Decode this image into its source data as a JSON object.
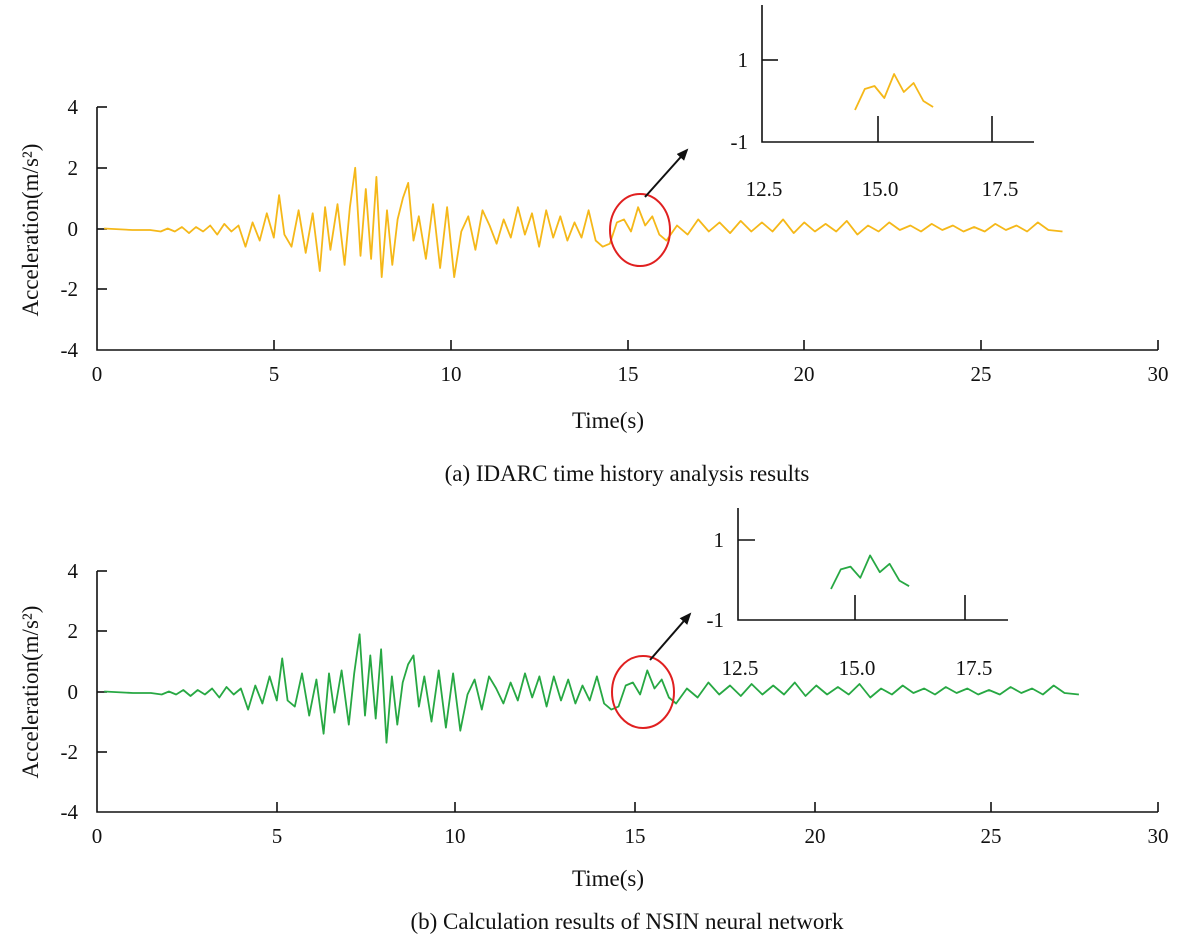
{
  "chart_data": [
    {
      "type": "line",
      "caption": "(a) IDARC time history analysis results",
      "xlabel": "Time(s)",
      "ylabel": "Acceleration(m/s²)",
      "xlim": [
        0,
        30
      ],
      "ylim": [
        -4,
        4
      ],
      "xticks": [
        "0",
        "5",
        "10",
        "15",
        "20",
        "25",
        "30"
      ],
      "yticks": [
        "4",
        "2",
        "0",
        "-2",
        "-4"
      ],
      "color": "#f5b819",
      "series": [
        {
          "x": [
            0.2,
            1.0,
            1.5,
            1.8,
            2.0,
            2.2,
            2.4,
            2.6,
            2.8,
            3.0,
            3.2,
            3.4,
            3.6,
            3.8,
            4.0,
            4.2,
            4.4,
            4.6,
            4.8,
            5.0,
            5.15,
            5.3,
            5.5,
            5.7,
            5.9,
            6.1,
            6.3,
            6.45,
            6.6,
            6.8,
            7.0,
            7.15,
            7.3,
            7.45,
            7.6,
            7.75,
            7.9,
            8.05,
            8.2,
            8.35,
            8.5,
            8.65,
            8.8,
            8.95,
            9.1,
            9.3,
            9.5,
            9.7,
            9.9,
            10.1,
            10.3,
            10.5,
            10.7,
            10.9,
            11.1,
            11.3,
            11.5,
            11.7,
            11.9,
            12.1,
            12.3,
            12.5,
            12.7,
            12.9,
            13.1,
            13.3,
            13.5,
            13.7,
            13.9,
            14.1,
            14.3,
            14.5,
            14.7,
            14.9,
            15.1,
            15.3,
            15.5,
            15.7,
            15.9,
            16.1,
            16.4,
            16.7,
            17.0,
            17.3,
            17.6,
            17.9,
            18.2,
            18.5,
            18.8,
            19.1,
            19.4,
            19.7,
            20.0,
            20.3,
            20.6,
            20.9,
            21.2,
            21.5,
            21.8,
            22.1,
            22.4,
            22.7,
            23.0,
            23.3,
            23.6,
            23.9,
            24.2,
            24.5,
            24.8,
            25.1,
            25.4,
            25.7,
            26.0,
            26.3,
            26.6,
            26.9,
            27.3
          ],
          "y": [
            0.0,
            -0.05,
            -0.05,
            -0.1,
            0.0,
            -0.1,
            0.05,
            -0.15,
            0.05,
            -0.1,
            0.1,
            -0.2,
            0.15,
            -0.1,
            0.1,
            -0.6,
            0.2,
            -0.4,
            0.5,
            -0.3,
            1.1,
            -0.2,
            -0.6,
            0.6,
            -0.8,
            0.5,
            -1.4,
            0.7,
            -0.7,
            0.8,
            -1.2,
            0.7,
            2.0,
            -0.9,
            1.3,
            -1.0,
            1.7,
            -1.6,
            0.6,
            -1.2,
            0.3,
            1.0,
            1.5,
            -0.4,
            0.4,
            -1.0,
            0.8,
            -1.3,
            0.7,
            -1.6,
            -0.1,
            0.4,
            -0.7,
            0.6,
            0.1,
            -0.5,
            0.3,
            -0.3,
            0.7,
            -0.2,
            0.5,
            -0.6,
            0.6,
            -0.3,
            0.4,
            -0.4,
            0.2,
            -0.3,
            0.6,
            -0.4,
            -0.6,
            -0.5,
            0.2,
            0.3,
            -0.1,
            0.7,
            0.1,
            0.4,
            -0.2,
            -0.4,
            0.1,
            -0.2,
            0.3,
            -0.1,
            0.2,
            -0.15,
            0.25,
            -0.1,
            0.2,
            -0.1,
            0.3,
            -0.15,
            0.2,
            -0.1,
            0.15,
            -0.1,
            0.25,
            -0.2,
            0.1,
            -0.1,
            0.2,
            -0.05,
            0.1,
            -0.1,
            0.15,
            -0.05,
            0.1,
            -0.1,
            0.05,
            -0.1,
            0.15,
            -0.05,
            0.1,
            -0.1,
            0.2,
            -0.05,
            -0.1
          ]
        }
      ],
      "inset": {
        "xticks": [
          "12.5",
          "15.0",
          "17.5"
        ],
        "yticks": [
          "1",
          "-1"
        ],
        "xlim": [
          12.5,
          17.5
        ],
        "ylim": [
          -1,
          1
        ]
      }
    },
    {
      "type": "line",
      "caption": "(b) Calculation results of NSIN neural network",
      "xlabel": "Time(s)",
      "ylabel": "Acceleration(m/s²)",
      "xlim": [
        0,
        30
      ],
      "ylim": [
        -4,
        4
      ],
      "xticks": [
        "0",
        "5",
        "10",
        "15",
        "20",
        "25",
        "30"
      ],
      "yticks": [
        "4",
        "2",
        "0",
        "-2",
        "-4"
      ],
      "color": "#27a843",
      "series": [
        {
          "x": [
            0.2,
            1.0,
            1.5,
            1.8,
            2.0,
            2.2,
            2.4,
            2.6,
            2.8,
            3.0,
            3.2,
            3.4,
            3.6,
            3.8,
            4.0,
            4.2,
            4.4,
            4.6,
            4.8,
            5.0,
            5.15,
            5.3,
            5.5,
            5.7,
            5.9,
            6.1,
            6.3,
            6.45,
            6.6,
            6.8,
            7.0,
            7.15,
            7.3,
            7.45,
            7.6,
            7.75,
            7.9,
            8.05,
            8.2,
            8.35,
            8.5,
            8.65,
            8.8,
            8.95,
            9.1,
            9.3,
            9.5,
            9.7,
            9.9,
            10.1,
            10.3,
            10.5,
            10.7,
            10.9,
            11.1,
            11.3,
            11.5,
            11.7,
            11.9,
            12.1,
            12.3,
            12.5,
            12.7,
            12.9,
            13.1,
            13.3,
            13.5,
            13.7,
            13.9,
            14.1,
            14.3,
            14.5,
            14.7,
            14.9,
            15.1,
            15.3,
            15.5,
            15.7,
            15.9,
            16.1,
            16.4,
            16.7,
            17.0,
            17.3,
            17.6,
            17.9,
            18.2,
            18.5,
            18.8,
            19.1,
            19.4,
            19.7,
            20.0,
            20.3,
            20.6,
            20.9,
            21.2,
            21.5,
            21.8,
            22.1,
            22.4,
            22.7,
            23.0,
            23.3,
            23.6,
            23.9,
            24.2,
            24.5,
            24.8,
            25.1,
            25.4,
            25.7,
            26.0,
            26.3,
            26.6,
            26.9,
            27.3
          ],
          "y": [
            0.0,
            -0.05,
            -0.05,
            -0.1,
            0.0,
            -0.1,
            0.05,
            -0.15,
            0.05,
            -0.1,
            0.1,
            -0.2,
            0.15,
            -0.1,
            0.1,
            -0.6,
            0.2,
            -0.4,
            0.5,
            -0.3,
            1.1,
            -0.3,
            -0.5,
            0.6,
            -0.8,
            0.4,
            -1.4,
            0.6,
            -0.7,
            0.7,
            -1.1,
            0.6,
            1.9,
            -0.8,
            1.2,
            -0.9,
            1.4,
            -1.7,
            0.5,
            -1.1,
            0.3,
            0.9,
            1.2,
            -0.5,
            0.5,
            -1.0,
            0.7,
            -1.2,
            0.6,
            -1.3,
            -0.1,
            0.4,
            -0.6,
            0.5,
            0.1,
            -0.4,
            0.3,
            -0.3,
            0.6,
            -0.2,
            0.5,
            -0.5,
            0.5,
            -0.3,
            0.4,
            -0.4,
            0.2,
            -0.3,
            0.5,
            -0.4,
            -0.6,
            -0.5,
            0.2,
            0.3,
            -0.1,
            0.7,
            0.1,
            0.4,
            -0.2,
            -0.4,
            0.1,
            -0.2,
            0.3,
            -0.1,
            0.2,
            -0.15,
            0.25,
            -0.1,
            0.2,
            -0.1,
            0.3,
            -0.15,
            0.2,
            -0.1,
            0.15,
            -0.1,
            0.25,
            -0.2,
            0.1,
            -0.1,
            0.2,
            -0.05,
            0.1,
            -0.1,
            0.15,
            -0.05,
            0.1,
            -0.1,
            0.05,
            -0.1,
            0.15,
            -0.05,
            0.1,
            -0.1,
            0.2,
            -0.05,
            -0.1
          ]
        }
      ],
      "inset": {
        "xticks": [
          "12.5",
          "15.0",
          "17.5"
        ],
        "yticks": [
          "1",
          "-1"
        ],
        "xlim": [
          12.5,
          17.5
        ],
        "ylim": [
          -1,
          1
        ]
      }
    }
  ]
}
